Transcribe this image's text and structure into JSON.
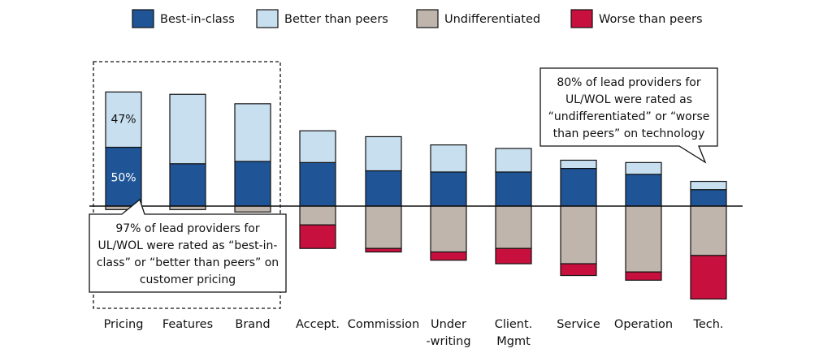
{
  "chart_data": {
    "type": "bar",
    "stacking": "diverging",
    "baseline": 0,
    "legend_position": "top",
    "grid": false,
    "categories": [
      [
        "Pricing"
      ],
      [
        "Features"
      ],
      [
        "Brand"
      ],
      [
        "Accept."
      ],
      [
        "Commission"
      ],
      [
        "Under",
        "-writing"
      ],
      [
        "Client.",
        "Mgmt"
      ],
      [
        "Service"
      ],
      [
        "Operation"
      ],
      [
        "Tech."
      ]
    ],
    "series": [
      {
        "name": "Best-in-class",
        "color": "#1f5596",
        "direction": "up",
        "values": [
          50,
          36,
          38,
          37,
          30,
          29,
          29,
          32,
          27,
          14
        ]
      },
      {
        "name": "Better than peers",
        "color": "#c8dff0",
        "direction": "up",
        "values": [
          47,
          59,
          49,
          27,
          29,
          23,
          20,
          7,
          10,
          7
        ]
      },
      {
        "name": "Undifferentiated",
        "color": "#bfb5ac",
        "direction": "down",
        "values": [
          3,
          3,
          5,
          16,
          36,
          39,
          36,
          49,
          56,
          42
        ]
      },
      {
        "name": "Worse than peers",
        "color": "#c8103e",
        "direction": "down",
        "values": [
          0,
          0,
          0,
          20,
          3,
          7,
          13,
          10,
          7,
          37
        ]
      }
    ],
    "data_labels": [
      {
        "category": 0,
        "series": 0,
        "text": "50%"
      },
      {
        "category": 0,
        "series": 1,
        "text": "47%"
      }
    ],
    "callouts": [
      {
        "lines": [
          "97% of lead providers for",
          "UL/WOL were rated as “best-in-",
          "class” or “better than peers” on",
          "customer pricing"
        ]
      },
      {
        "lines": [
          "80% of lead providers for",
          "UL/WOL were rated as",
          "“undifferentiated” or “worse",
          "than peers” on technology"
        ]
      }
    ]
  }
}
